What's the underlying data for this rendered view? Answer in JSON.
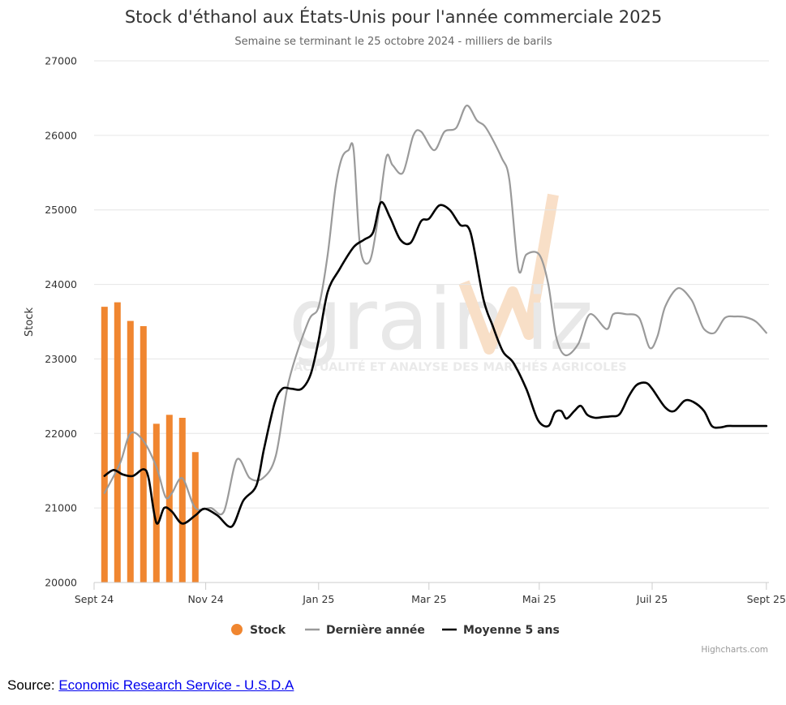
{
  "colors": {
    "stock": "#f08630",
    "last_year": "#9a9a9a",
    "avg5": "#000000",
    "watermark": "#e4e4e4",
    "watermark_accent": "#f7dcc3",
    "grid": "#e6e6e6",
    "axis_text": "#555555",
    "title": "#333333",
    "link": "#0000ee"
  },
  "chart": {
    "credits": "Highcharts.com",
    "watermark": {
      "word_left": "grain",
      "word_right": "iz",
      "tagline": "ACTUALITÉ ET ANALYSE DES MARCHÉS AGRICOLES"
    }
  },
  "source": {
    "label": "Source:",
    "link_text": "Economic Research Service - U.S.D.A"
  },
  "chart_data": {
    "type": "bar",
    "title": "Stock d'éthanol aux États-Unis pour l'année commerciale 2025",
    "subtitle": "Semaine se terminant le 25 octobre 2024 - milliers de barils",
    "ylabel": "Stock",
    "xlabel": "",
    "ylim": [
      20000,
      27000
    ],
    "y_ticks": [
      "20000",
      "21000",
      "22000",
      "23000",
      "24000",
      "25000",
      "26000",
      "27000"
    ],
    "x_range": [
      0,
      52
    ],
    "x_ticks": [
      {
        "label": "Sept 24",
        "week": 0
      },
      {
        "label": "Nov 24",
        "week": 8.6
      },
      {
        "label": "Jan 25",
        "week": 17.3
      },
      {
        "label": "Mar 25",
        "week": 25.8
      },
      {
        "label": "Mai 25",
        "week": 34.3
      },
      {
        "label": "Juil 25",
        "week": 43
      },
      {
        "label": "Sept 25",
        "week": 51.8
      }
    ],
    "grid": true,
    "legend_position": "bottom-center",
    "legend": [
      "Stock",
      "Dernière année",
      "Moyenne 5 ans"
    ],
    "series": [
      {
        "name": "Stock",
        "type": "bar",
        "x": [
          0.8,
          1.8,
          2.8,
          3.8,
          4.8,
          5.8,
          6.8,
          7.8
        ],
        "values": [
          23700,
          23760,
          23510,
          23440,
          22130,
          22250,
          22210,
          21750
        ]
      },
      {
        "name": "Dernière année",
        "type": "line",
        "x": [
          0.8,
          2.0,
          2.8,
          3.8,
          4.8,
          5.5,
          6.0,
          6.8,
          7.8,
          9.0,
          10.0,
          11.0,
          12.0,
          13.0,
          14.0,
          15.0,
          16.5,
          17.3,
          18.0,
          18.6,
          19.1,
          19.6,
          20.0,
          20.5,
          21.2,
          21.8,
          22.5,
          23.0,
          23.8,
          24.6,
          25.2,
          26.2,
          27.0,
          27.9,
          28.7,
          29.5,
          30.2,
          31.4,
          32.0,
          32.7,
          33.3,
          34.3,
          35.0,
          35.6,
          36.3,
          37.3,
          38.2,
          39.5,
          40.0,
          41.0,
          42.0,
          42.8,
          43.4,
          44.0,
          45.0,
          46.0,
          46.5,
          47.0,
          47.8,
          48.6,
          49.4,
          50.2,
          51.0,
          51.8
        ],
        "values": [
          21200,
          21600,
          22000,
          21900,
          21550,
          21150,
          21200,
          21400,
          21000,
          21000,
          20950,
          21650,
          21400,
          21400,
          21700,
          22700,
          23500,
          23700,
          24400,
          25300,
          25700,
          25800,
          25800,
          24500,
          24300,
          24800,
          25700,
          25600,
          25500,
          26000,
          26050,
          25800,
          26050,
          26100,
          26400,
          26200,
          26100,
          25700,
          25400,
          24200,
          24400,
          24400,
          24000,
          23300,
          23050,
          23200,
          23600,
          23400,
          23600,
          23600,
          23550,
          23150,
          23300,
          23700,
          23950,
          23800,
          23600,
          23400,
          23350,
          23550,
          23570,
          23560,
          23500,
          23350
        ]
      },
      {
        "name": "Moyenne 5 ans",
        "type": "line",
        "x": [
          0.8,
          1.5,
          2.2,
          3.0,
          3.8,
          4.2,
          4.8,
          5.4,
          6.0,
          6.8,
          7.8,
          8.5,
          9.5,
          10.6,
          11.5,
          12.5,
          13.1,
          13.9,
          14.5,
          15.2,
          16.0,
          16.7,
          17.3,
          18.0,
          18.9,
          20.0,
          20.8,
          21.5,
          22.1,
          22.8,
          23.6,
          24.4,
          25.2,
          25.8,
          26.6,
          27.4,
          28.2,
          29.0,
          30.0,
          30.7,
          31.5,
          32.3,
          33.3,
          34.2,
          35.0,
          35.5,
          36.0,
          36.4,
          37.0,
          37.5,
          38.0,
          38.6,
          39.2,
          39.8,
          40.5,
          41.2,
          41.8,
          42.5,
          43.0,
          44.0,
          44.7,
          45.5,
          46.2,
          47.0,
          47.6,
          48.2,
          48.8,
          49.4,
          50.0,
          51.0,
          51.8
        ],
        "values": [
          21430,
          21510,
          21450,
          21430,
          21520,
          21400,
          20800,
          21000,
          20950,
          20790,
          20900,
          20990,
          20900,
          20750,
          21100,
          21300,
          21800,
          22400,
          22600,
          22600,
          22600,
          22800,
          23250,
          23900,
          24200,
          24500,
          24600,
          24700,
          25100,
          24900,
          24600,
          24560,
          24850,
          24880,
          25060,
          25000,
          24800,
          24700,
          23800,
          23450,
          23100,
          22950,
          22600,
          22180,
          22100,
          22280,
          22300,
          22200,
          22300,
          22370,
          22250,
          22210,
          22220,
          22230,
          22260,
          22500,
          22650,
          22680,
          22600,
          22350,
          22300,
          22440,
          22420,
          22300,
          22100,
          22080,
          22100,
          22100,
          22100,
          22100,
          22100
        ]
      }
    ]
  }
}
